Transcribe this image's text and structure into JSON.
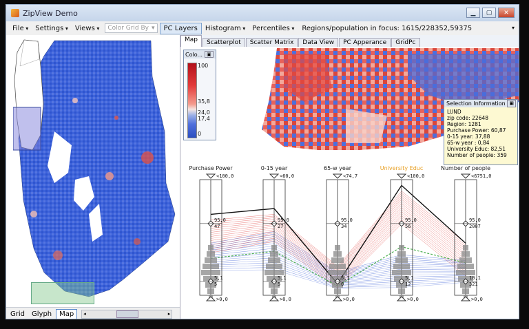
{
  "window": {
    "title": "ZipView Demo"
  },
  "menu": {
    "file": "File",
    "settings": "Settings",
    "views": "Views",
    "color_grid": "Color Grid By",
    "pc_layers": "PC Layers",
    "histogram": "Histogram",
    "percentiles": "Percentiles",
    "status": "Regions/population in focus: 1615/228352,59375"
  },
  "tabs": [
    "Map",
    "Scatterplot",
    "Scatter Matrix",
    "Data View",
    "PC Apperance",
    "GridPc"
  ],
  "bottom_tabs": [
    "Grid",
    "Glyph",
    "Map"
  ],
  "color_legend": {
    "title": "Colo...",
    "labels": [
      "100",
      "35,8",
      "24,0",
      "17,4",
      "0"
    ]
  },
  "selection": {
    "title": "Selection Information",
    "lines": [
      "LUND",
      "zip code: 22648",
      "Region: 1281",
      "Purchase Power: 60,87",
      "0-15 year: 37,88",
      "65-w year : 0,84",
      "University Educ: 82,51",
      "Number of people: 359"
    ]
  },
  "pc": {
    "axes": [
      {
        "name": "Purchase Power",
        "top": "<100,0",
        "upper": "95,0",
        "upper2": "47",
        "lower": "5,1",
        "lower2": "5",
        "bottom": ">0,0",
        "highlight": false
      },
      {
        "name": "0-15 year",
        "top": "<60,0",
        "upper": "95,0",
        "upper2": "27",
        "lower": "5,1",
        "lower2": "5",
        "bottom": ">0,0",
        "highlight": false
      },
      {
        "name": "65-w year",
        "top": "<74,7",
        "upper": "95,0",
        "upper2": "34",
        "lower": "5,1",
        "lower2": "0",
        "bottom": ">0,0",
        "highlight": false
      },
      {
        "name": "University Educ",
        "top": "<100,0",
        "upper": "95,0",
        "upper2": "56",
        "lower": "5,1",
        "lower2": "12",
        "bottom": ">0,0",
        "highlight": true
      },
      {
        "name": "Number of people",
        "top": "<6751,0",
        "upper": "95,0",
        "upper2": "2007",
        "lower": "10,1",
        "lower2": "321",
        "bottom": ">0,0",
        "highlight": false
      }
    ]
  },
  "colors": {
    "highlight_axis": "#e8a025",
    "red": "#e3413d",
    "blue": "#3b5fd8",
    "green": "#4caf50"
  }
}
